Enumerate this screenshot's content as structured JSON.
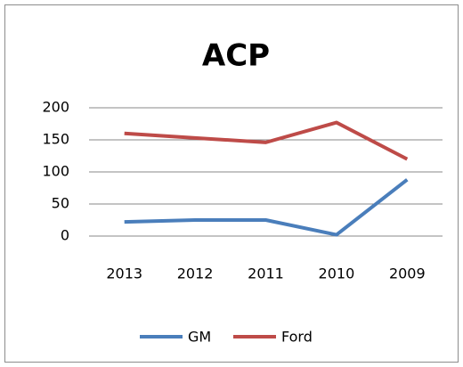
{
  "chart_data": {
    "type": "line",
    "title": "ACP",
    "categories": [
      "2013",
      "2012",
      "2011",
      "2010",
      "2009"
    ],
    "series": [
      {
        "name": "GM",
        "color": "#4a7ebb",
        "values": [
          22,
          25,
          25,
          2,
          88
        ]
      },
      {
        "name": "Ford",
        "color": "#be4b48",
        "values": [
          160,
          153,
          146,
          177,
          120
        ]
      }
    ],
    "ylim": [
      0,
      200
    ],
    "yticks": [
      0,
      50,
      100,
      150,
      200
    ],
    "grid": true,
    "legend": "bottom"
  }
}
